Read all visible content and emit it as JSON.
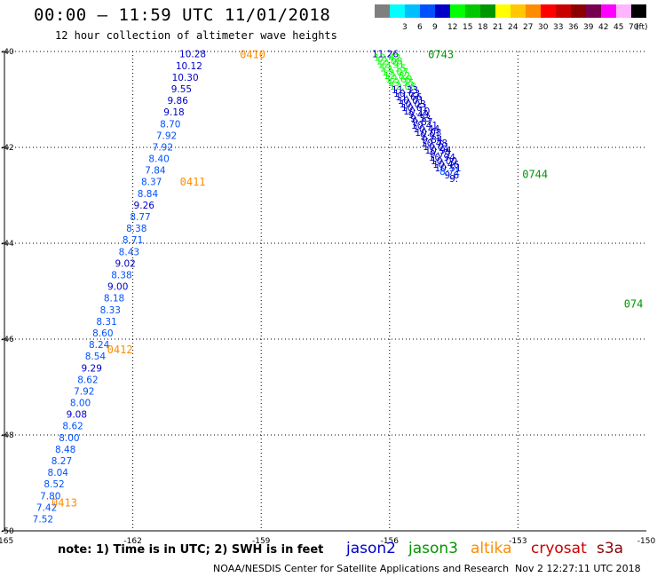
{
  "header": {
    "title": "00:00 – 11:59 UTC 11/01/2018",
    "subtitle": "12 hour collection of altimeter wave heights"
  },
  "color_scale": {
    "unit": "(ft)",
    "bins": [
      {
        "label": "",
        "color": "#7f7f7f"
      },
      {
        "label": "3",
        "color": "#00ffff"
      },
      {
        "label": "6",
        "color": "#00bfff"
      },
      {
        "label": "9",
        "color": "#0050ff"
      },
      {
        "label": "12",
        "color": "#0000c8"
      },
      {
        "label": "15",
        "color": "#00ff00"
      },
      {
        "label": "18",
        "color": "#00c800"
      },
      {
        "label": "21",
        "color": "#009600"
      },
      {
        "label": "24",
        "color": "#ffff00"
      },
      {
        "label": "27",
        "color": "#ffc800"
      },
      {
        "label": "30",
        "color": "#ff8c00"
      },
      {
        "label": "33",
        "color": "#ff0000"
      },
      {
        "label": "36",
        "color": "#c80000"
      },
      {
        "label": "39",
        "color": "#8c0000"
      },
      {
        "label": "42",
        "color": "#780050"
      },
      {
        "label": "45",
        "color": "#ff00ff"
      },
      {
        "label": "70",
        "color": "#ffb4ff"
      },
      {
        "label": "",
        "color": "#000000"
      }
    ]
  },
  "footer": {
    "note": "note: 1) Time is in UTC; 2) SWH is in feet",
    "credit": "NOAA/NESDIS Center for Satellite Applications and Research",
    "timestamp": "Nov  2 12:27:11 UTC 2018",
    "satellites": [
      {
        "name": "jason2",
        "color": "#0000c8"
      },
      {
        "name": "jason3",
        "color": "#009600"
      },
      {
        "name": "altika",
        "color": "#ff8c00"
      },
      {
        "name": "cryosat",
        "color": "#c80000"
      },
      {
        "name": "s3a",
        "color": "#8c0000"
      }
    ]
  },
  "chart_data": {
    "type": "scatter",
    "x_ticks": [
      "-165",
      "-162",
      "-159",
      "-156",
      "-153",
      "-150"
    ],
    "y_ticks": [
      "-40",
      "-42",
      "-44",
      "-46",
      "-48",
      "-50"
    ],
    "xlim": [
      -165,
      -150
    ],
    "ylim": [
      -50,
      -40
    ],
    "grid": true,
    "time_labels": [
      {
        "text": "0410",
        "lon": -159.2,
        "lat": -40.05,
        "color": "#ff8c00"
      },
      {
        "text": "0411",
        "lon": -160.6,
        "lat": -42.7,
        "color": "#ff8c00"
      },
      {
        "text": "0412",
        "lon": -162.3,
        "lat": -46.2,
        "color": "#ff8c00"
      },
      {
        "text": "0413",
        "lon": -163.6,
        "lat": -49.4,
        "color": "#ff8c00"
      },
      {
        "text": "0743",
        "lon": -154.8,
        "lat": -40.05,
        "color": "#009600"
      },
      {
        "text": "0744",
        "lon": -152.6,
        "lat": -42.55,
        "color": "#009600"
      },
      {
        "text": "074",
        "lon": -150.3,
        "lat": -45.25,
        "color": "#009600"
      }
    ],
    "series": [
      {
        "name": "altika",
        "start": [
          -160.6,
          -40.05
        ],
        "end": [
          -164.1,
          -49.75
        ],
        "values": [
          "10.28",
          "10.12",
          "10.30",
          "9.55",
          "9.86",
          "9.18",
          "8.70",
          "7.92",
          "7.92",
          "8.40",
          "7.84",
          "8.37",
          "8.84",
          "9.26",
          "8.77",
          "8.38",
          "8.71",
          "8.43",
          "9.02",
          "8.38",
          "9.00",
          "8.18",
          "8.33",
          "8.31",
          "8.60",
          "8.24",
          "8.54",
          "9.29",
          "8.62",
          "7.92",
          "8.00",
          "9.08",
          "8.62",
          "8.00",
          "8.48",
          "8.27",
          "8.04",
          "8.52",
          "7.80",
          "7.42",
          "7.52"
        ]
      },
      {
        "name": "jason3",
        "start": [
          -156.1,
          -40.05
        ],
        "end": [
          -154.5,
          -42.65
        ],
        "values": [
          "11.26",
          "12.42",
          "12.08",
          "12.91",
          "13.15",
          "13.07",
          "12.82",
          "12.69",
          "13.35",
          "12.08",
          "11.33",
          "10.63",
          "11.66",
          "10.01",
          "10.03",
          "10.61",
          "10.10",
          "9.49",
          "9.33",
          "9.87",
          "10.41",
          "10.44",
          "10.03",
          "9.91",
          "9.84",
          "10.48",
          "10.01",
          "10.94",
          "9.79",
          "10.94",
          "10.00",
          "10.46",
          "10.51",
          "8.71",
          "9.6",
          "9."
        ]
      }
    ]
  }
}
